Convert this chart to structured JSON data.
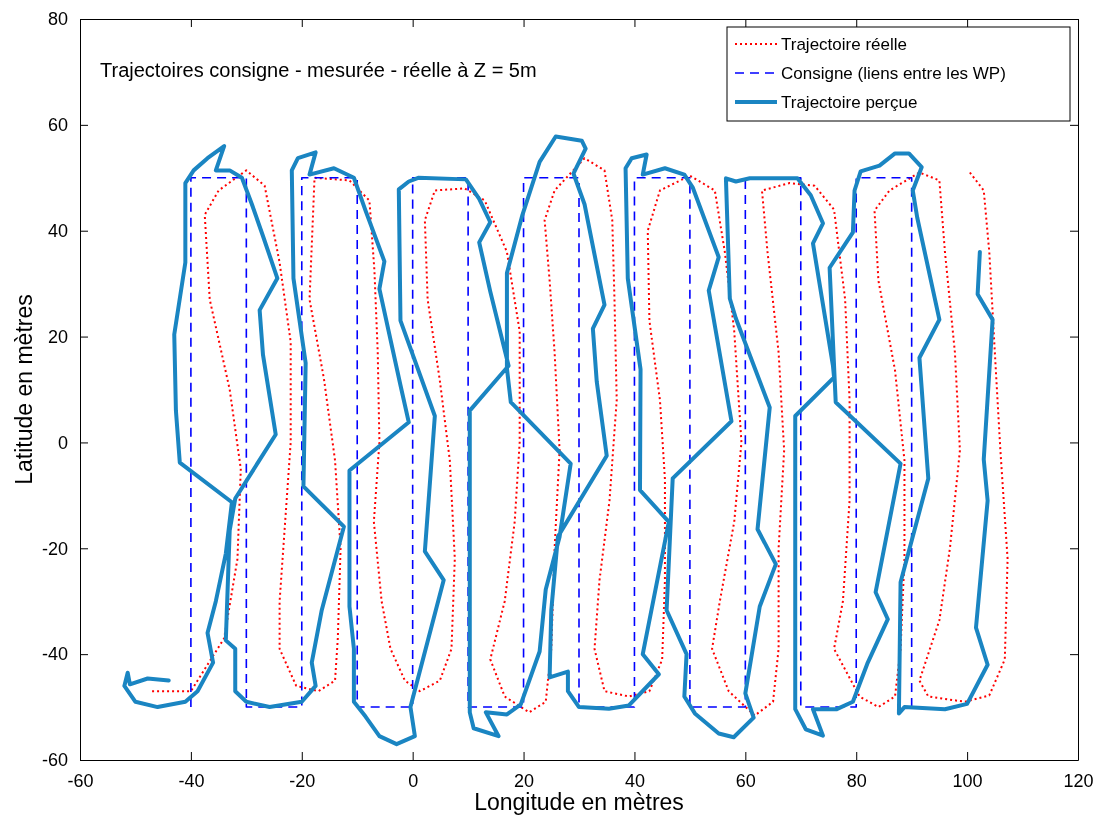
{
  "chart_data": {
    "type": "line",
    "title": "Trajectoires consigne - mesurée - réelle à Z = 5m",
    "xlabel": "Longitude en mètres",
    "ylabel": "Latitude en mètres",
    "xlim": [
      -60,
      120
    ],
    "xticks": [
      -60,
      -40,
      -20,
      0,
      20,
      40,
      60,
      80,
      100,
      120
    ],
    "ylim": [
      -60,
      80
    ],
    "yticks": [
      -60,
      -40,
      -20,
      0,
      20,
      40,
      60,
      80
    ],
    "grid": false,
    "legend": "top right",
    "series": [
      {
        "name": "Trajectoire réelle",
        "color": "#ff0000",
        "line_style": "dotted",
        "x": [
          -47,
          -40,
          -34,
          -31.6,
          -31,
          -33,
          -36.6,
          -37.5,
          -35,
          -30,
          -26.7,
          -24,
          -22,
          -22,
          -23,
          -24,
          -24,
          -21,
          -17,
          -14,
          -13.5,
          -13,
          -14,
          -16,
          -18.6,
          -17.7,
          -11.4,
          -7.8,
          -6.9,
          -6.3,
          -6,
          -7,
          -5.6,
          -4,
          -1.4,
          1.3,
          4.9,
          7,
          7.6,
          6.7,
          4.9,
          2.7,
          2.2,
          4,
          9.4,
          13,
          17,
          19.3,
          19.3,
          18.4,
          16.6,
          14,
          16.6,
          21,
          24,
          25,
          25.6,
          26.5,
          25.6,
          24.7,
          23.8,
          25.6,
          31,
          34.6,
          36,
          36.4,
          36.8,
          35.5,
          33.7,
          32.8,
          34.6,
          39,
          42.7,
          45,
          45.5,
          45.5,
          44.6,
          42.7,
          42.4,
          44.6,
          50,
          54.5,
          56.3,
          58,
          59.3,
          58,
          55.4,
          54,
          57,
          61.7,
          65,
          66,
          66,
          67,
          66,
          64,
          63,
          68,
          72.5,
          76,
          78,
          78.8,
          78.8,
          77.6,
          76,
          80.6,
          84,
          87,
          88,
          88.7,
          88.7,
          87,
          84,
          83.3,
          86,
          91.4,
          95,
          96,
          97.8,
          98.7,
          96.9,
          95,
          91.4,
          93,
          99.6,
          104,
          106.8,
          107.3,
          106,
          105,
          104,
          103,
          100.5
        ],
        "values": [
          -47,
          -47,
          -37,
          -22,
          -5,
          10,
          27,
          43,
          47.6,
          51.4,
          48.5,
          34,
          19,
          0,
          -15,
          -30,
          -39,
          -46,
          -47,
          -45,
          -37,
          -20,
          -3.4,
          12,
          27,
          50,
          49.5,
          45.7,
          32.5,
          17,
          0,
          -15,
          -30,
          -39,
          -45,
          -47,
          -45,
          -39,
          -22,
          -3.4,
          11.7,
          27,
          42,
          47.6,
          48,
          45.7,
          36,
          21,
          0,
          -15,
          -30,
          -41,
          -48,
          -51,
          -49,
          -39,
          -20,
          -1.5,
          17,
          30.6,
          42,
          47.6,
          53.7,
          51.4,
          42,
          27,
          8,
          -11,
          -26,
          -39,
          -47,
          -48,
          -47,
          -41,
          -26,
          -7,
          8,
          23,
          40,
          47.6,
          50.4,
          47.6,
          36,
          21,
          0,
          -15,
          -30,
          -39,
          -47,
          -51.6,
          -49,
          -39,
          -20,
          -1.5,
          17,
          36,
          47.6,
          49,
          48.5,
          44,
          27,
          8,
          -11,
          -30,
          -39,
          -48,
          -50,
          -48,
          -39,
          -22,
          -3.4,
          13.6,
          30.6,
          43.8,
          47.6,
          51,
          49.5,
          36,
          17,
          -1.5,
          -20,
          -33.6,
          -45,
          -48,
          -49,
          -47.8,
          -41,
          -22,
          -1.5,
          17,
          36,
          47.6,
          51
        ]
      },
      {
        "name": "Consigne (liens entre les WP)",
        "color": "#0000ff",
        "line_style": "dashed",
        "x": [
          -40,
          -40,
          -30,
          -30,
          -20,
          -20,
          -10,
          -10,
          0,
          0,
          10,
          10,
          20,
          20,
          30,
          30,
          40,
          40,
          50,
          50,
          60,
          60,
          70,
          70,
          80,
          80,
          90,
          90
        ],
        "values": [
          -50,
          50,
          50,
          -50,
          -50,
          50,
          50,
          -50,
          -50,
          50,
          50,
          -50,
          -50,
          50,
          50,
          -50,
          -50,
          50,
          50,
          -50,
          -50,
          50,
          50,
          -50,
          -50,
          50,
          50,
          -50
        ]
      },
      {
        "name": "Trajectoire perçue",
        "color": "#1a85c2",
        "line_style": "solid",
        "x": [
          -44,
          -47.8,
          -51,
          -51.4,
          -52,
          -50,
          -46,
          -41,
          -38.8,
          -36,
          -37,
          -35.5,
          -33.7,
          -32.6,
          -42,
          -42.7,
          -43,
          -41,
          -41,
          -39.5,
          -37,
          -34,
          -35.5,
          -33,
          -30.8,
          -29,
          -27,
          -24.4,
          -27.6,
          -27,
          -24.7,
          -32,
          -33,
          -33.7,
          -32,
          -32,
          -30,
          -25.8,
          -20,
          -17.5,
          -18.2,
          -16.4,
          -12.4,
          -19.7,
          -19.3,
          -21.5,
          -21.8,
          -20.7,
          -17.5,
          -18.6,
          -14.2,
          -10.6,
          -8.5,
          -5.1,
          -6,
          -2.2,
          -0.7,
          -11.4,
          -11.4,
          -10.6,
          -10.6,
          -8.5,
          -6,
          -2.9,
          0.4,
          -0.4,
          5.6,
          2.2,
          4,
          -2.2,
          -2.5,
          -0.7,
          1,
          9.6,
          12,
          14,
          12,
          14,
          17.3,
          10.3,
          10.3,
          11,
          15.5,
          13.2,
          17,
          19.5,
          22.9,
          24,
          26.5,
          28.5,
          17.7,
          17,
          17,
          19.8,
          22.9,
          25.8,
          30.5,
          31.2,
          29,
          31,
          34.6,
          32.5,
          33.2,
          35,
          26.2,
          25,
          24.7,
          28,
          28,
          30,
          35.4,
          39,
          44.4,
          41.5,
          46.2,
          41,
          41.1,
          38.8,
          38.4,
          39.5,
          42.2,
          41.5,
          45.5,
          49,
          50.5,
          55.2,
          53.4,
          57.5,
          46.9,
          45.8,
          49.4,
          49,
          50.9,
          55.2,
          57.9,
          61.5,
          60,
          62.6,
          65.5,
          62.2,
          64.4,
          58.3,
          57.2,
          56.5,
          58.3,
          60.8,
          69.4,
          71.8,
          74,
          72.2,
          75.8,
          76,
          69,
          69,
          70.9,
          74,
          72.2,
          76.5,
          79.4,
          82,
          85.7,
          83.5,
          88,
          76.3,
          75.2,
          79.4,
          79.7,
          80.8,
          84.2,
          87,
          89.5,
          91.8,
          90.2,
          91,
          95,
          91.4,
          93,
          88,
          87.7,
          88.7,
          96,
          100,
          103.7,
          101.6,
          103.7,
          103,
          104.6,
          101.9,
          102.3
        ],
        "values": [
          -45,
          -44.6,
          -45.7,
          -43.5,
          -46,
          -49,
          -50,
          -49,
          -47,
          -41.6,
          -36,
          -30,
          -21,
          -11.3,
          -3.8,
          6,
          20.4,
          34,
          49,
          51.4,
          53.7,
          56,
          51.4,
          51.4,
          50,
          45,
          39,
          31,
          25,
          16.6,
          1.5,
          -10.6,
          -16.6,
          -37.4,
          -39,
          -47,
          -49,
          -50,
          -49,
          -46,
          -41.6,
          -31.7,
          -15.9,
          -8.3,
          15,
          31,
          51.4,
          53.7,
          54.8,
          50.6,
          51.8,
          50,
          43.8,
          34.2,
          29,
          10.8,
          3.8,
          -5.3,
          -31,
          -39,
          -49,
          -51.8,
          -55.5,
          -57,
          -55.5,
          -50,
          -26,
          -20.6,
          5,
          23,
          47.8,
          49.3,
          50,
          49.7,
          46,
          41.6,
          37.8,
          28.5,
          14.5,
          6,
          -51,
          -54,
          -55.5,
          -51,
          -51.4,
          -49.5,
          -39.5,
          -27.8,
          -17.8,
          -4,
          7.6,
          14,
          32,
          43,
          53,
          57.8,
          57,
          55.5,
          50.8,
          45,
          26,
          21.5,
          11.5,
          -2.5,
          -17.8,
          -31.7,
          -44.4,
          -43.3,
          -47,
          -50,
          -50.3,
          -49.7,
          -43.8,
          -40,
          -15,
          -9,
          13.8,
          31,
          51.8,
          53.7,
          54.4,
          50.6,
          51.8,
          50.6,
          48.2,
          35,
          28.7,
          4,
          -6.8,
          -31.7,
          -40,
          -48,
          -51.2,
          -55,
          -55.7,
          -52,
          -47.4,
          -31,
          -23,
          -16.4,
          6.6,
          23.4,
          27.2,
          49.9,
          49.3,
          49.9,
          49.9,
          46.7,
          41.4,
          37.6,
          14.5,
          12.3,
          5,
          -50.4,
          -54.2,
          -55.4,
          -50.4,
          -50.4,
          -49,
          -41.8,
          -33.4,
          -28.3,
          -4,
          7.6,
          33,
          39.7,
          47.6,
          51.2,
          52.3,
          54.6,
          54.6,
          52,
          47.6,
          42.5,
          23.2,
          16,
          -6.8,
          -26.4,
          -51.2,
          -50,
          -50.4,
          -49.4,
          -42,
          -35,
          -11,
          -3.2,
          23.2,
          28,
          36
        ]
      }
    ]
  }
}
